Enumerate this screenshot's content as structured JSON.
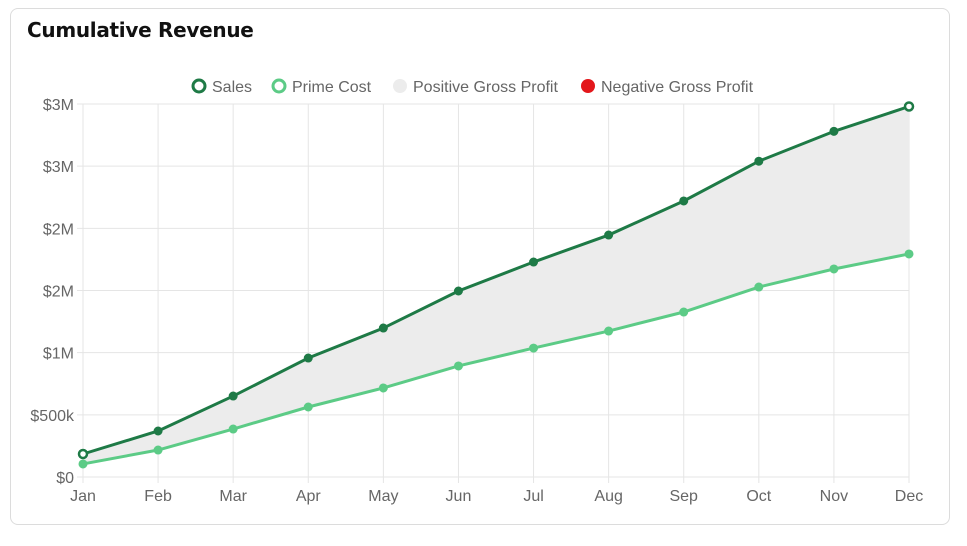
{
  "card": {
    "title": "Cumulative Revenue"
  },
  "chart_data": {
    "type": "line",
    "title": "Cumulative Revenue",
    "categories": [
      "Jan",
      "Feb",
      "Mar",
      "Apr",
      "May",
      "Jun",
      "Jul",
      "Aug",
      "Sep",
      "Oct",
      "Nov",
      "Dec"
    ],
    "series": [
      {
        "name": "Sales",
        "color": "#1e7a46",
        "values": [
          185000,
          370000,
          651000,
          957000,
          1198000,
          1496000,
          1729000,
          1946000,
          2220000,
          2540000,
          2780000,
          2980000
        ]
      },
      {
        "name": "Prime Cost",
        "color": "#5ccb86",
        "values": [
          105000,
          217000,
          386000,
          563000,
          716000,
          893000,
          1037000,
          1174000,
          1327000,
          1528000,
          1673000,
          1794000
        ]
      }
    ],
    "fills": [
      {
        "name": "Positive Gross Profit",
        "color": "#ececec"
      },
      {
        "name": "Negative Gross Profit",
        "color": "#e3171b"
      }
    ],
    "legend": [
      "Sales",
      "Prime Cost",
      "Positive Gross Profit",
      "Negative Gross Profit"
    ],
    "legend_position": "top",
    "yticks": [
      0,
      500000,
      1000000,
      1500000,
      2000000,
      2500000,
      3000000
    ],
    "ytick_labels": [
      "$0",
      "$500k",
      "$1M",
      "$2M",
      "$2M",
      "$3M",
      "$3M"
    ],
    "ylim": [
      0,
      3000000
    ],
    "grid": true,
    "xlabel": "",
    "ylabel": ""
  }
}
